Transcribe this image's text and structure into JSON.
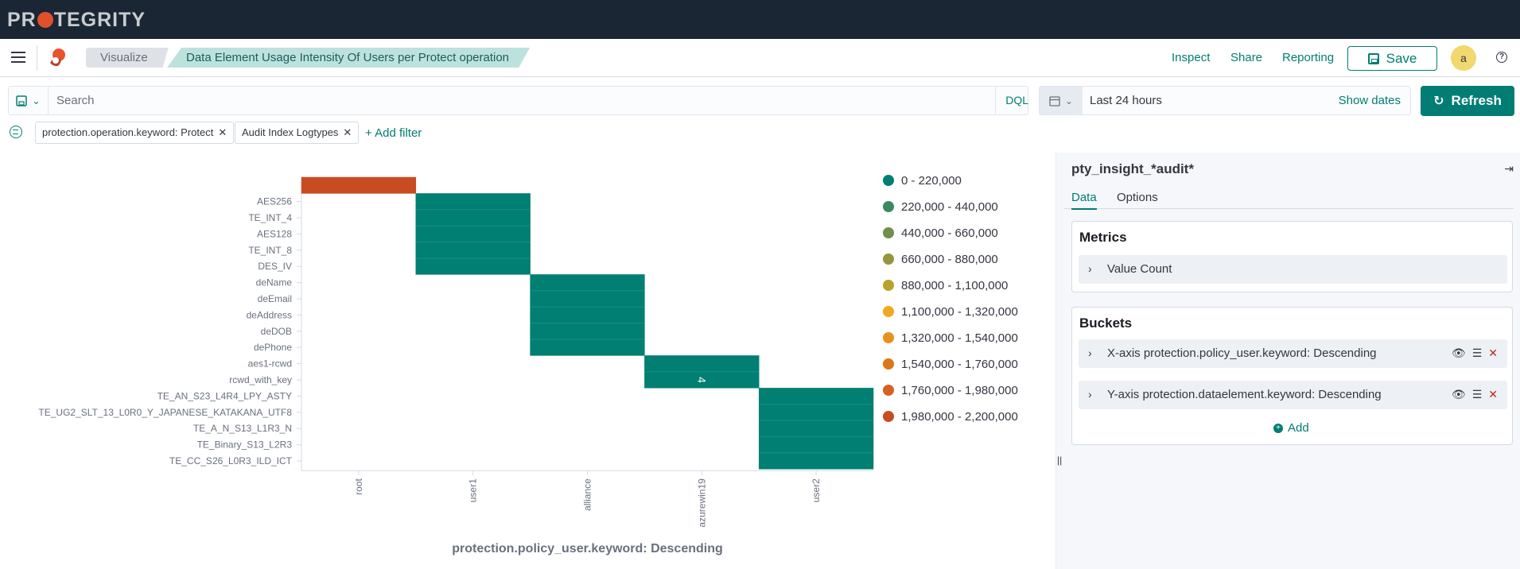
{
  "brand": {
    "logo_text_a": "PR",
    "logo_text_b": "TEGRITY"
  },
  "breadcrumbs": [
    "Visualize",
    "Data Element Usage Intensity Of Users per Protect operation"
  ],
  "header_actions": {
    "inspect": "Inspect",
    "share": "Share",
    "reporting": "Reporting",
    "save": "Save",
    "avatar": "a",
    "help": "?"
  },
  "search": {
    "placeholder": "Search",
    "language": "DQL"
  },
  "time": {
    "range": "Last 24 hours",
    "show_dates": "Show dates",
    "refresh": "Refresh"
  },
  "filters": [
    {
      "label": "protection.operation.keyword: Protect"
    },
    {
      "label": "Audit Index Logtypes"
    }
  ],
  "add_filter": "+ Add filter",
  "sidebar": {
    "index_pattern": "pty_insight_*audit*",
    "tabs": [
      "Data",
      "Options"
    ],
    "metrics_title": "Metrics",
    "metrics": [
      "Value Count"
    ],
    "buckets_title": "Buckets",
    "buckets": [
      "X-axis protection.policy_user.keyword: Descending",
      "Y-axis protection.dataelement.keyword: Descending"
    ],
    "add_label": "Add"
  },
  "colors": {
    "accent": "#017d73",
    "header_bg": "#1a2633",
    "cell_low": "#007f72",
    "cell_high": "#c94b22"
  },
  "chart_data": {
    "type": "heatmap",
    "xlabel": "protection.policy_user.keyword: Descending",
    "x_categories": [
      "root",
      "user1",
      "alliance",
      "azurewin19",
      "user2"
    ],
    "y_categories": [
      "",
      "AES256",
      "TE_INT_4",
      "AES128",
      "TE_INT_8",
      "DES_IV",
      "deName",
      "deEmail",
      "deAddress",
      "deDOB",
      "dePhone",
      "aes1-rcwd",
      "rcwd_with_key",
      "TE_AN_S23_L4R4_LPY_ASTY",
      "TE_UG2_SLT_13_L0R0_Y_JAPANESE_KATAKANA_UTF8",
      "TE_A_N_S13_L1R3_N",
      "TE_Binary_S13_L2R3",
      "TE_CC_S26_L0R3_ILD_ICT"
    ],
    "cells": [
      {
        "x": "root",
        "y": "",
        "range_index": 9
      },
      {
        "x": "user1",
        "y": "AES256",
        "range_index": 0
      },
      {
        "x": "user1",
        "y": "TE_INT_4",
        "range_index": 0
      },
      {
        "x": "user1",
        "y": "AES128",
        "range_index": 0
      },
      {
        "x": "user1",
        "y": "TE_INT_8",
        "range_index": 0
      },
      {
        "x": "user1",
        "y": "DES_IV",
        "range_index": 0
      },
      {
        "x": "alliance",
        "y": "deName",
        "range_index": 0
      },
      {
        "x": "alliance",
        "y": "deEmail",
        "range_index": 0
      },
      {
        "x": "alliance",
        "y": "deAddress",
        "range_index": 0
      },
      {
        "x": "alliance",
        "y": "deDOB",
        "range_index": 0
      },
      {
        "x": "alliance",
        "y": "dePhone",
        "range_index": 0
      },
      {
        "x": "azurewin19",
        "y": "aes1-rcwd",
        "range_index": 0
      },
      {
        "x": "azurewin19",
        "y": "rcwd_with_key",
        "range_index": 0,
        "label": "4"
      },
      {
        "x": "user2",
        "y": "TE_AN_S23_L4R4_LPY_ASTY",
        "range_index": 0
      },
      {
        "x": "user2",
        "y": "TE_UG2_SLT_13_L0R0_Y_JAPANESE_KATAKANA_UTF8",
        "range_index": 0
      },
      {
        "x": "user2",
        "y": "TE_A_N_S13_L1R3_N",
        "range_index": 0
      },
      {
        "x": "user2",
        "y": "TE_Binary_S13_L2R3",
        "range_index": 0
      },
      {
        "x": "user2",
        "y": "TE_CC_S26_L0R3_ILD_ICT",
        "range_index": 0
      }
    ],
    "legend": [
      {
        "label": "0 - 220,000",
        "color": "#007f72"
      },
      {
        "label": "220,000 - 440,000",
        "color": "#3a8a5e"
      },
      {
        "label": "440,000 - 660,000",
        "color": "#6e904a"
      },
      {
        "label": "660,000 - 880,000",
        "color": "#94963c"
      },
      {
        "label": "880,000 - 1,100,000",
        "color": "#b9a22e"
      },
      {
        "label": "1,100,000 - 1,320,000",
        "color": "#f0a81e"
      },
      {
        "label": "1,320,000 - 1,540,000",
        "color": "#e8911c"
      },
      {
        "label": "1,540,000 - 1,760,000",
        "color": "#dd7618"
      },
      {
        "label": "1,760,000 - 1,980,000",
        "color": "#d56220"
      },
      {
        "label": "1,980,000 - 2,200,000",
        "color": "#c94b22"
      }
    ],
    "legend_position": "right"
  }
}
